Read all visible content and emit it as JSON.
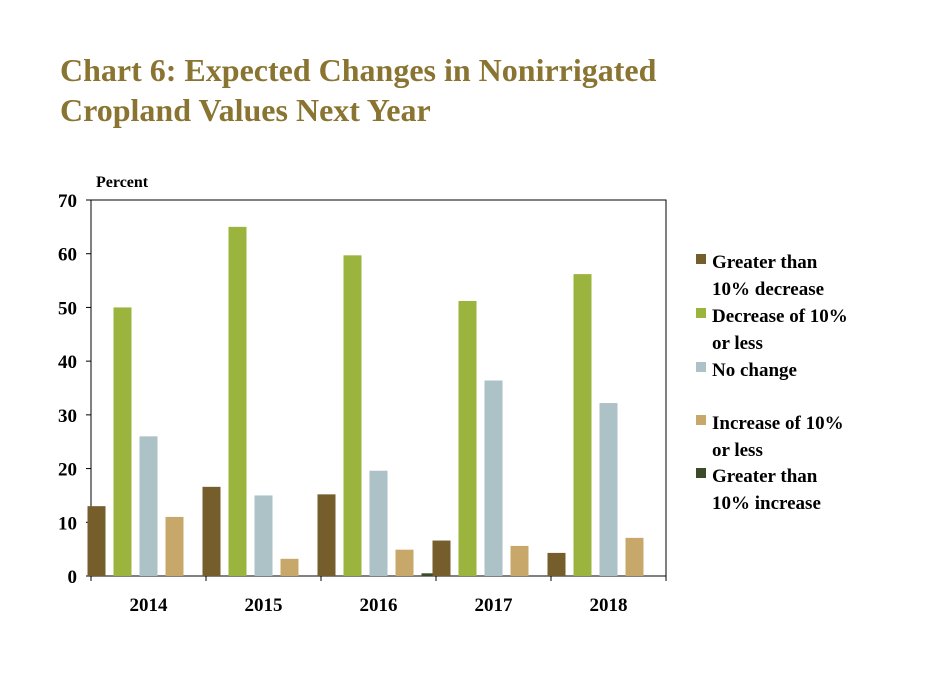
{
  "title_line1": "Chart 6: Expected Changes in Nonirrigated",
  "title_line2": "Cropland Values Next Year",
  "chart_data": {
    "type": "bar",
    "title": "Chart 6: Expected Changes in Nonirrigated Cropland Values Next Year",
    "ylabel": "Percent",
    "xlabel": "",
    "ylim": [
      0,
      70
    ],
    "yticks": [
      0,
      10,
      20,
      30,
      40,
      50,
      60,
      70
    ],
    "grid": false,
    "legend_position": "right",
    "categories": [
      "2014",
      "2015",
      "2016",
      "2017",
      "2018"
    ],
    "series": [
      {
        "name": "Greater than 10% decrease",
        "label_lines": [
          "Greater than",
          "10% decrease"
        ],
        "color": "#765d2c",
        "values": [
          13,
          16.6,
          15.2,
          6.6,
          4.3
        ]
      },
      {
        "name": "Decrease of 10% or less",
        "label_lines": [
          "Decrease of 10%",
          "or less"
        ],
        "color": "#9bb43d",
        "values": [
          50,
          65,
          59.7,
          51.2,
          56.2
        ]
      },
      {
        "name": "No change",
        "label_lines": [
          "No change"
        ],
        "color": "#adc2c7",
        "values": [
          26,
          15,
          19.6,
          36.4,
          32.2
        ]
      },
      {
        "name": "Increase of 10% or less",
        "label_lines": [
          "Increase of 10%",
          "or less"
        ],
        "color": "#c8a86a",
        "values": [
          11,
          3.2,
          4.9,
          5.6,
          7.1
        ]
      },
      {
        "name": "Greater than 10% increase",
        "label_lines": [
          "Greater than",
          "10% increase"
        ],
        "color": "#3c4a2c",
        "values": [
          0,
          0,
          0.5,
          0,
          0
        ]
      }
    ]
  }
}
